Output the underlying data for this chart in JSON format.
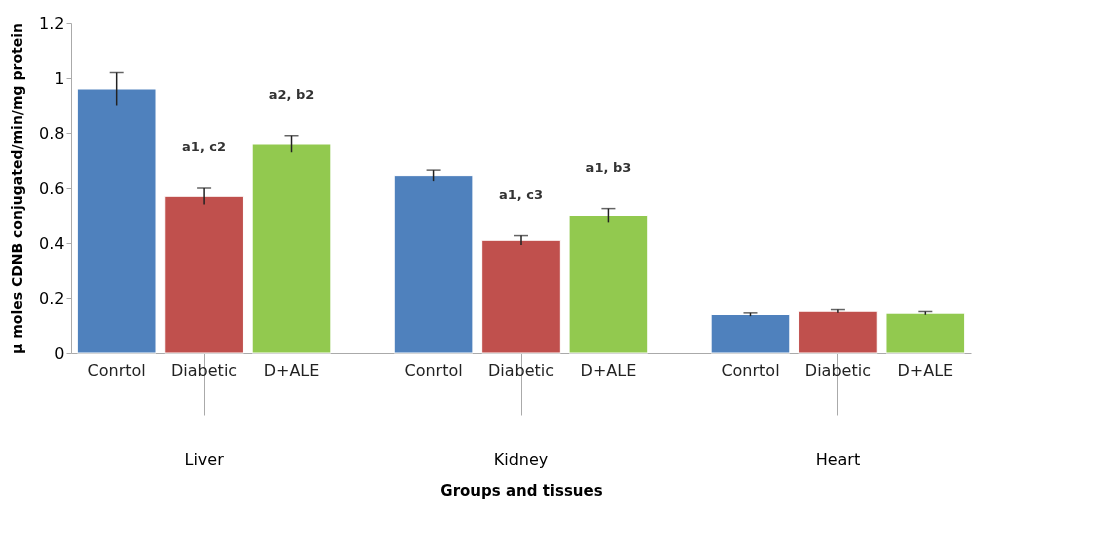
{
  "chart_data": {
    "type": "bar",
    "xlabel": "Groups and tissues",
    "ylabel": "µ moles CDNB conjugated/min/mg protein",
    "categories": [
      "Liver",
      "Kidney",
      "Heart"
    ],
    "series": [
      {
        "name": "Conrtol",
        "color": "#4f81bd",
        "values": [
          0.96,
          0.645,
          0.14
        ],
        "errors": [
          0.06,
          0.02,
          0.006
        ]
      },
      {
        "name": "Diabetic",
        "color": "#c0504d",
        "values": [
          0.57,
          0.41,
          0.152
        ],
        "errors": [
          0.03,
          0.017,
          0.006
        ]
      },
      {
        "name": "D+ALE",
        "color": "#92c94f",
        "values": [
          0.76,
          0.5,
          0.145
        ],
        "errors": [
          0.03,
          0.025,
          0.006
        ]
      }
    ],
    "annotations": [
      "a1, c2",
      "a2, b2",
      "a1, c3",
      "a1, b3"
    ],
    "ylim": [
      0,
      1.2
    ],
    "yticks": [
      0,
      0.2,
      0.4,
      0.6,
      0.8,
      1,
      1.2
    ],
    "grid": false,
    "legend": false
  }
}
